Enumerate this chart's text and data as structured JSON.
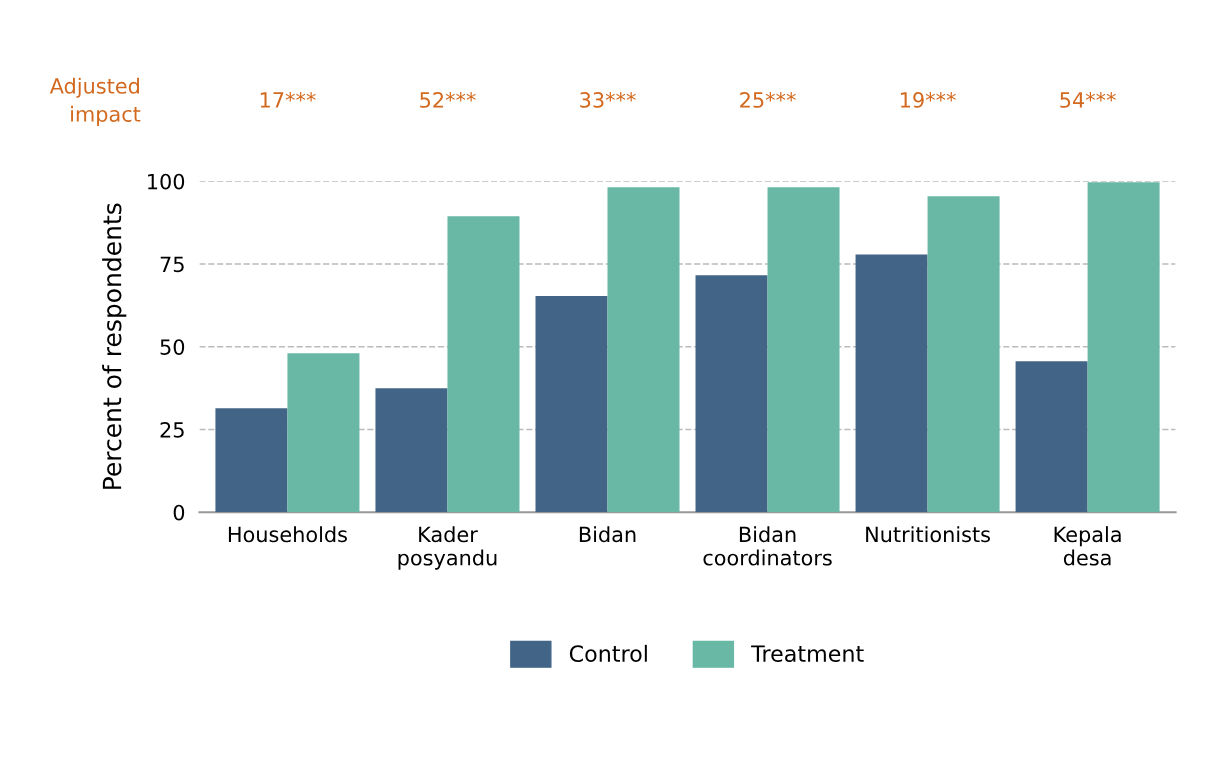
{
  "chart_data": {
    "type": "bar",
    "ylabel": "Percent of respondents",
    "categories": [
      "Households",
      "Kader\nposyandu",
      "Bidan",
      "Bidan\ncoordinators",
      "Nutritionists",
      "Kepala\ndesa"
    ],
    "series": [
      {
        "name": "Control",
        "color": "#426587",
        "values": [
          31.4,
          37.5,
          65.3,
          71.6,
          77.9,
          45.6
        ]
      },
      {
        "name": "Treatment",
        "color": "#69b8a6",
        "values": [
          48.0,
          89.4,
          98.2,
          98.2,
          95.5,
          99.7
        ]
      }
    ],
    "ylim": [
      0,
      100
    ],
    "yticks": [
      0,
      25,
      50,
      75,
      100
    ],
    "grid": "y",
    "legend": "bottom",
    "annotations": [
      "Adjusted\nimpact",
      "17***",
      "52***",
      "33***",
      "25***",
      "19***",
      "54***"
    ]
  }
}
